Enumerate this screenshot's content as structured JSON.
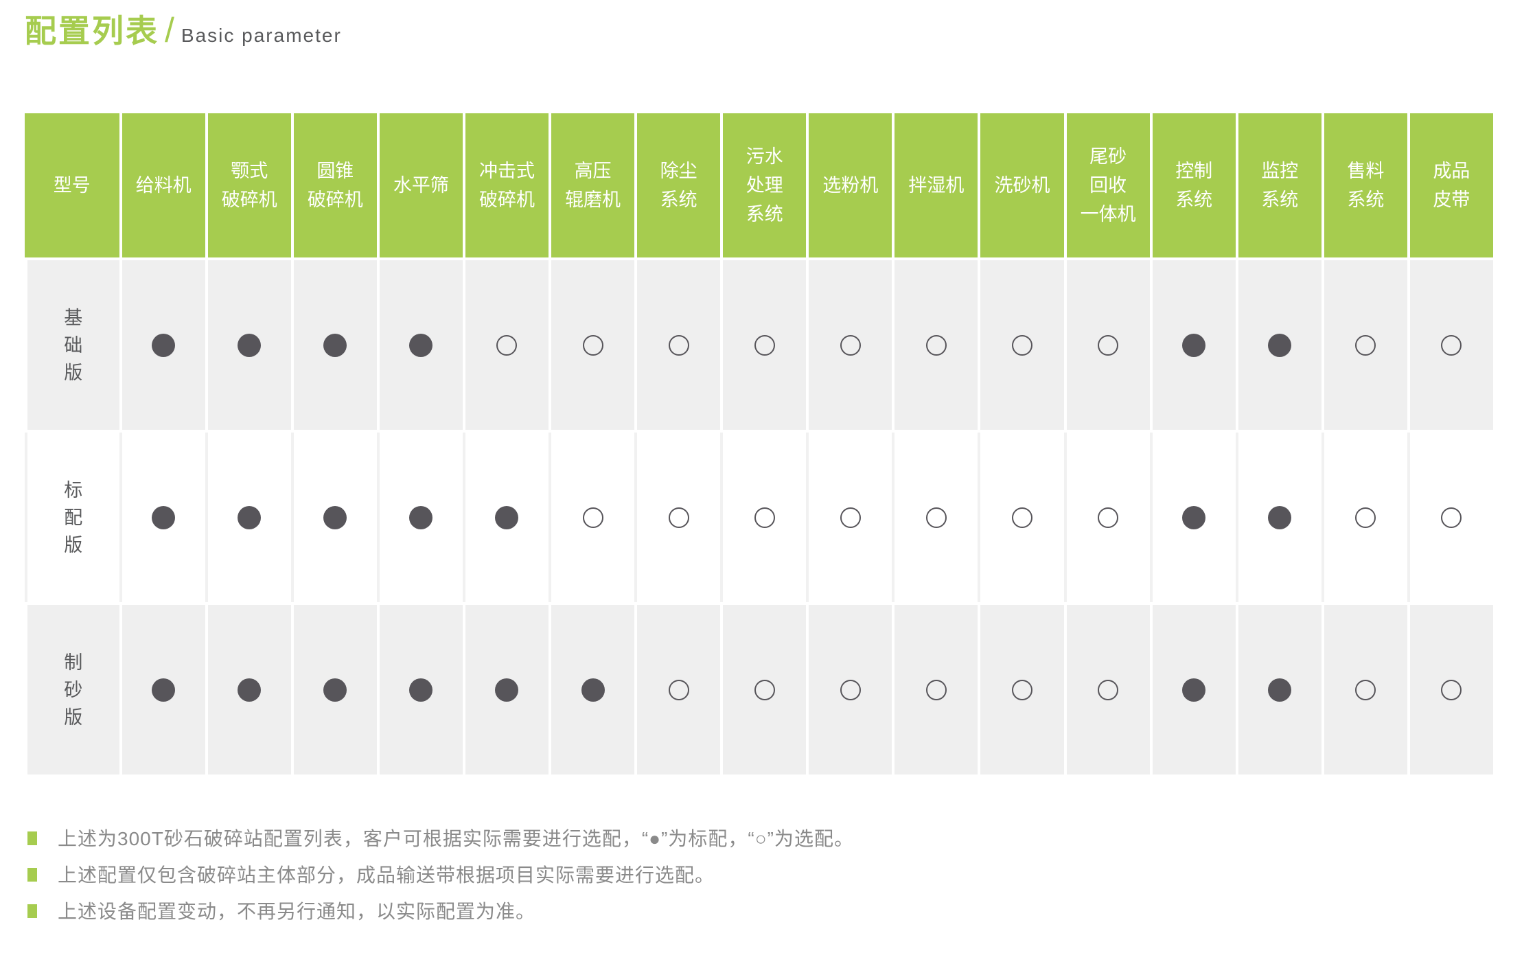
{
  "header": {
    "title_zh": "配置列表",
    "divider": "/",
    "title_en": "Basic parameter"
  },
  "colors": {
    "accent_green": "#a6cc4f",
    "dot_filled": "#57555a",
    "row_alt_bg": "#efefef",
    "footnote_text": "#8a8a8a",
    "label_text": "#58595b"
  },
  "table": {
    "columns": [
      "型号",
      "给料机",
      "颚式\n破碎机",
      "圆锥\n破碎机",
      "水平筛",
      "冲击式\n破碎机",
      "高压\n辊磨机",
      "除尘\n系统",
      "污水\n处理\n系统",
      "选粉机",
      "拌湿机",
      "洗砂机",
      "尾砂\n回收\n一体机",
      "控制\n系统",
      "监控\n系统",
      "售料\n系统",
      "成品\n皮带"
    ],
    "rows": [
      {
        "label": "基\n础\n版",
        "cells": [
          "filled",
          "filled",
          "filled",
          "filled",
          "empty",
          "empty",
          "empty",
          "empty",
          "empty",
          "empty",
          "empty",
          "empty",
          "filled",
          "filled",
          "empty",
          "empty"
        ]
      },
      {
        "label": "标\n配\n版",
        "cells": [
          "filled",
          "filled",
          "filled",
          "filled",
          "filled",
          "empty",
          "empty",
          "empty",
          "empty",
          "empty",
          "empty",
          "empty",
          "filled",
          "filled",
          "empty",
          "empty"
        ]
      },
      {
        "label": "制\n砂\n版",
        "cells": [
          "filled",
          "filled",
          "filled",
          "filled",
          "filled",
          "filled",
          "empty",
          "empty",
          "empty",
          "empty",
          "empty",
          "empty",
          "filled",
          "filled",
          "empty",
          "empty"
        ]
      }
    ]
  },
  "legend": {
    "standard_symbol": "●",
    "standard_label": "标配",
    "optional_symbol": "○",
    "optional_label": "选配"
  },
  "footnotes": [
    "上述为300T砂石破碎站配置列表，客户可根据实际需要进行选配，“●”为标配，“○”为选配。",
    "上述配置仅包含破碎站主体部分，成品输送带根据项目实际需要进行选配。",
    "上述设备配置变动，不再另行通知，以实际配置为准。"
  ]
}
